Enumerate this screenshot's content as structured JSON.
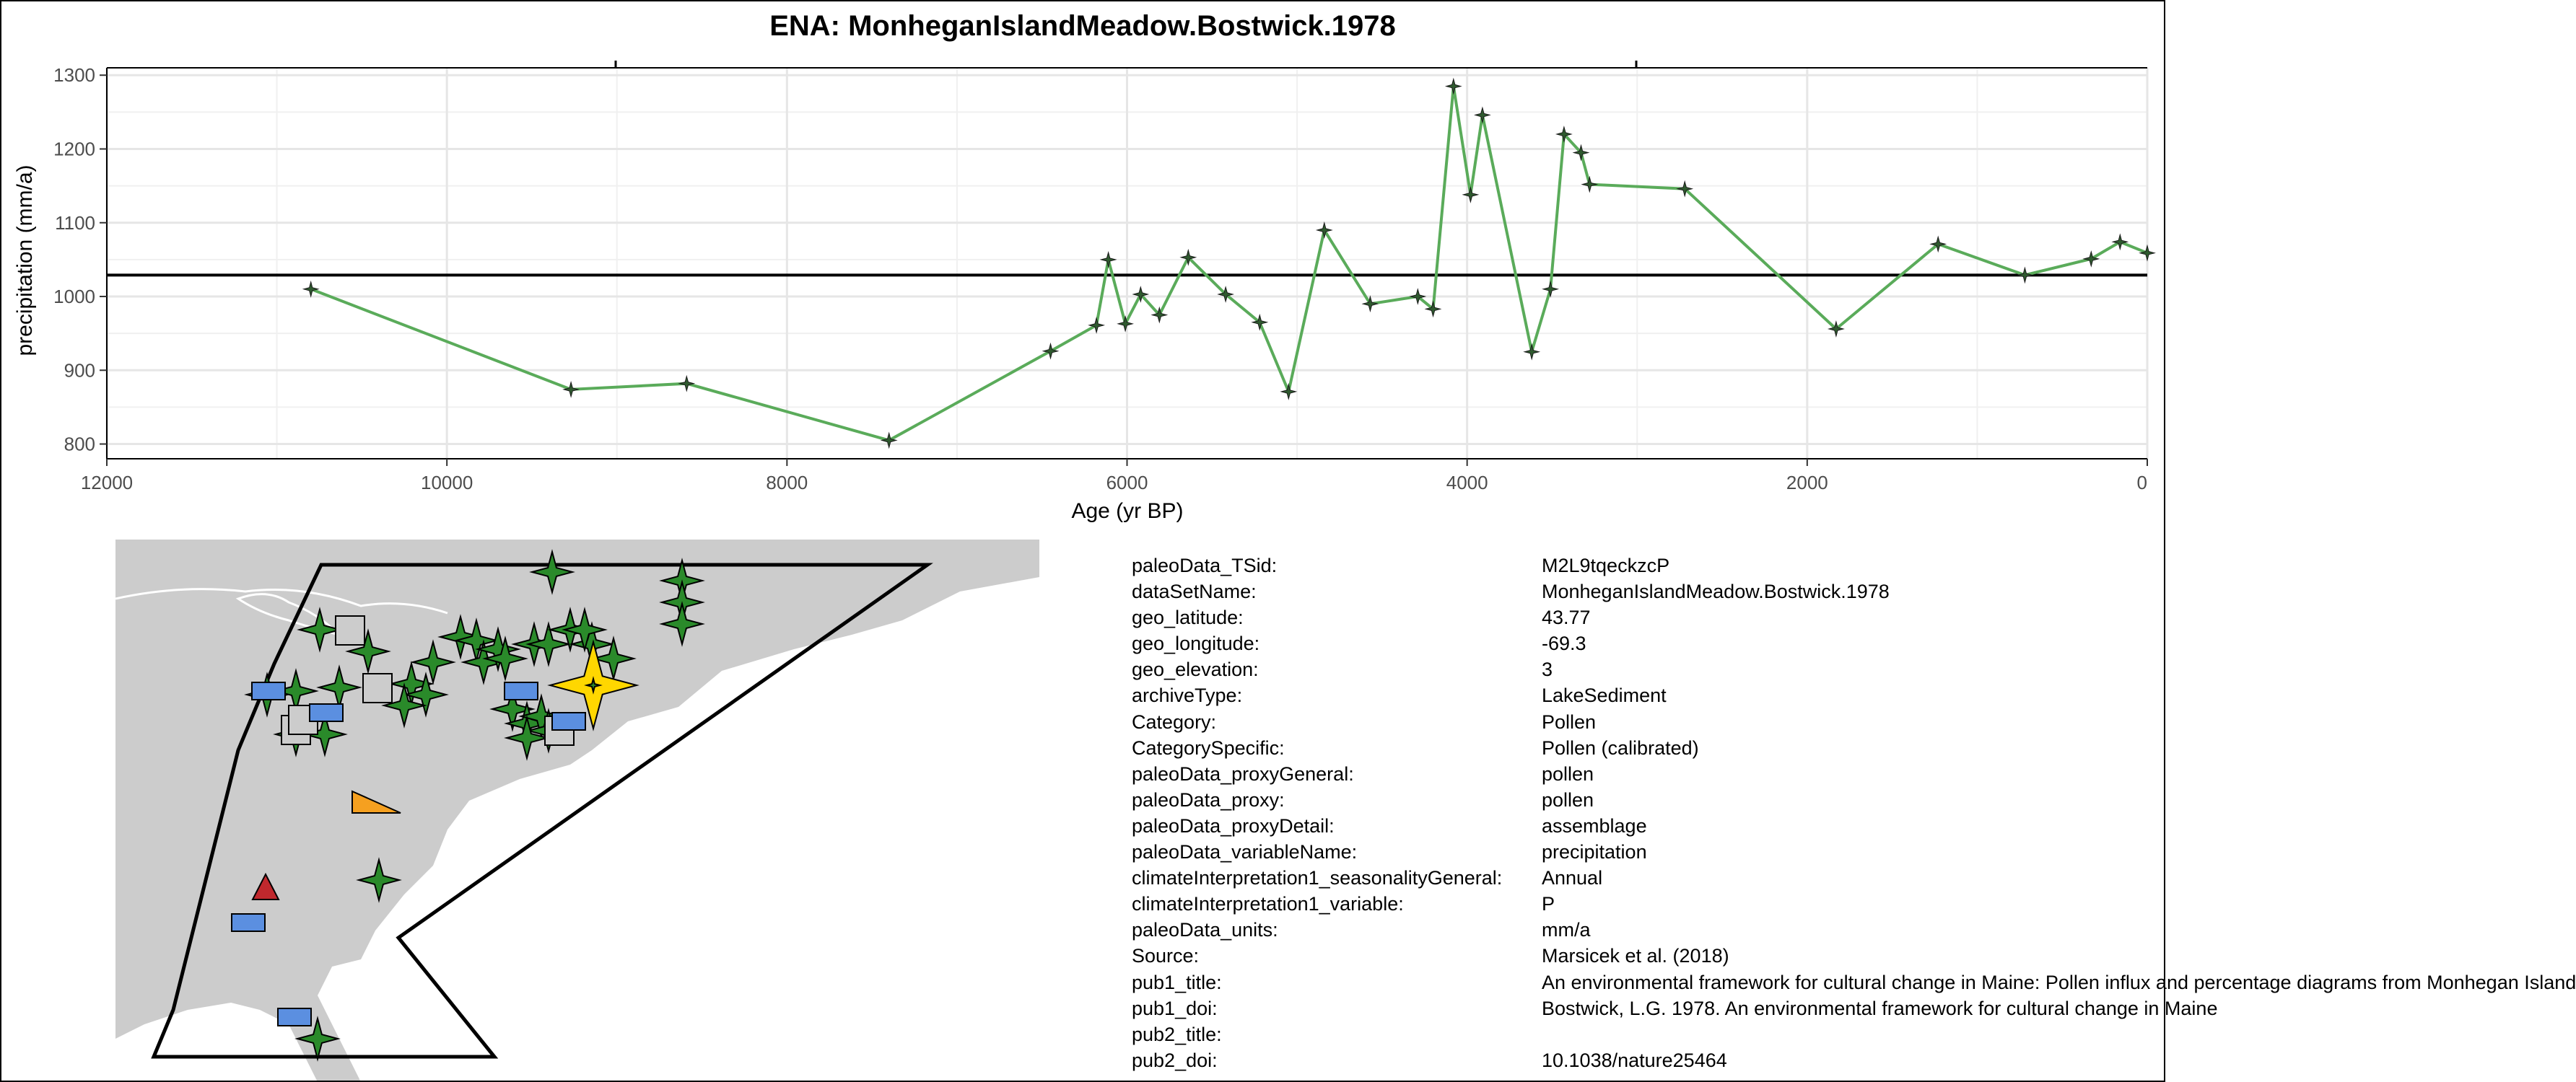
{
  "chart_data": {
    "type": "line",
    "title": "ENA: MonheganIslandMeadow.Bostwick.1978",
    "xlabel": "Age (yr BP)",
    "ylabel": "precipitation (mm/a)",
    "xlim": [
      12000,
      0
    ],
    "ylim": [
      780,
      1310
    ],
    "x_reversed": true,
    "x_ticks": [
      12000,
      10000,
      8000,
      6000,
      4000,
      2000,
      0
    ],
    "x_tick_labels": [
      "12000",
      "10000",
      "8000",
      "6000",
      "4000",
      "2000",
      "0"
    ],
    "y_ticks": [
      800,
      900,
      1000,
      1100,
      1200,
      1300
    ],
    "y_tick_labels": [
      "800",
      "900",
      "1000",
      "1100",
      "1200",
      "1300"
    ],
    "grid": true,
    "reference_line": 1029,
    "line_color": "#5aab5a",
    "marker_color": "#2f5a2f",
    "series": [
      {
        "x": [
          10800,
          9270,
          8590,
          7400,
          6450,
          6180,
          6110,
          6010,
          5920,
          5810,
          5640,
          5420,
          5220,
          5050,
          4840,
          4570,
          4290,
          4200,
          4080,
          3980,
          3910,
          3620,
          3510,
          3430,
          3330,
          3280,
          2720,
          1830,
          1230,
          720,
          330,
          160,
          0
        ],
        "values": [
          1010,
          874,
          882,
          805,
          926,
          961,
          1050,
          963,
          1003,
          975,
          1053,
          1003,
          965,
          871,
          1090,
          990,
          1000,
          983,
          1285,
          1138,
          1246,
          925,
          1010,
          1220,
          1195,
          1152,
          1146,
          956,
          1071,
          1029,
          1051,
          1074,
          1059
        ]
      }
    ]
  },
  "map": {
    "region_outline_color": "#000000",
    "land_color": "#cccccc",
    "highlight_color": "#ffd700",
    "proxy_colors": {
      "pollen": "#2a8a2a",
      "lake_sediment_other": "#cccccc",
      "blue_archive": "#5b8fe0",
      "orange_archive": "#f5a020",
      "red_archive": "#c0282d"
    }
  },
  "metadata": [
    {
      "key": "paleoData_TSid:",
      "value": "M2L9tqeckzcP"
    },
    {
      "key": "dataSetName:",
      "value": "MonheganIslandMeadow.Bostwick.1978"
    },
    {
      "key": "geo_latitude:",
      "value": "43.77"
    },
    {
      "key": "geo_longitude:",
      "value": "-69.3"
    },
    {
      "key": "geo_elevation:",
      "value": "3"
    },
    {
      "key": "archiveType:",
      "value": "LakeSediment"
    },
    {
      "key": "Category:",
      "value": "Pollen"
    },
    {
      "key": "CategorySpecific:",
      "value": "Pollen (calibrated)"
    },
    {
      "key": "paleoData_proxyGeneral:",
      "value": "pollen"
    },
    {
      "key": "paleoData_proxy:",
      "value": "pollen"
    },
    {
      "key": "paleoData_proxyDetail:",
      "value": "assemblage"
    },
    {
      "key": "paleoData_variableName:",
      "value": "precipitation"
    },
    {
      "key": "climateInterpretation1_seasonalityGeneral:",
      "value": "Annual"
    },
    {
      "key": "climateInterpretation1_variable:",
      "value": "P"
    },
    {
      "key": "paleoData_units:",
      "value": "mm/a"
    },
    {
      "key": "Source:",
      "value": "Marsicek et al. (2018)"
    },
    {
      "key": "pub1_title:",
      "value": "An environmental framework for cultural change in Maine: Pollen influx and percentage diagrams from Monhegan Island"
    },
    {
      "key": "pub1_doi:",
      "value": "Bostwick, L.G. 1978. An environmental framework for cultural change in Maine"
    },
    {
      "key": "pub2_title:",
      "value": ""
    },
    {
      "key": "pub2_doi:",
      "value": "10.1038/nature25464"
    }
  ]
}
